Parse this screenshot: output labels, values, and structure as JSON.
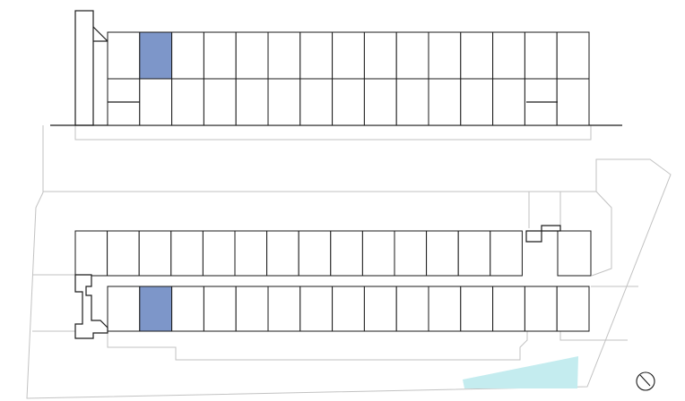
{
  "plan": {
    "highlight_color": "#7d96c9",
    "water_color": "#c4ecef",
    "line_color": "#1a1a1a",
    "site_line_color": "#c2c2c2",
    "highlighted_units": [
      "top-upper-2",
      "bottom-lower-2"
    ]
  },
  "compass": {
    "icon": "north-arrow-icon"
  }
}
